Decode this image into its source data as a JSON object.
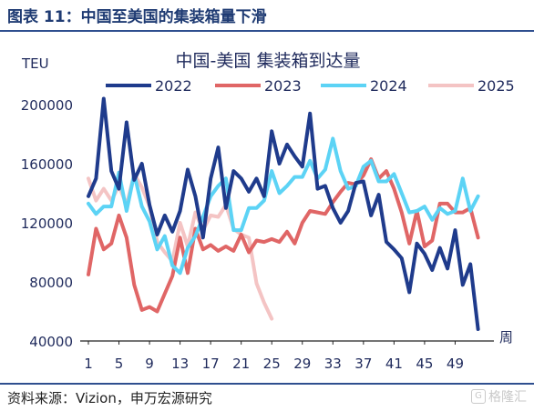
{
  "figure_title": "图表 11：中国至美国的集装箱量下滑",
  "source": "资料来源：Vizion，申万宏源研究",
  "watermark": "格隆汇",
  "chart_data": {
    "type": "line",
    "title": "中国-美国 集装箱到达量",
    "ylabel": "TEU",
    "xlabel": "周",
    "ylim": [
      40000,
      200000
    ],
    "yticks": [
      40000,
      80000,
      120000,
      160000,
      200000
    ],
    "ytick_labels": [
      "40000",
      "80000",
      "120000",
      "160000",
      "200000"
    ],
    "xlim": [
      1,
      53
    ],
    "xticks": [
      1,
      5,
      9,
      13,
      17,
      21,
      25,
      29,
      33,
      37,
      41,
      45,
      49
    ],
    "xtick_labels": [
      "1",
      "5",
      "9",
      "13",
      "17",
      "21",
      "25",
      "29",
      "33",
      "37",
      "41",
      "45",
      "49"
    ],
    "grid": false,
    "legend_position": "top",
    "colors": {
      "2022": "#1f3b8c",
      "2023": "#e06666",
      "2024": "#5cd3f5",
      "2025": "#f4c4c4"
    },
    "series": [
      {
        "name": "2022",
        "x": [
          1,
          2,
          3,
          4,
          5,
          6,
          7,
          8,
          9,
          10,
          11,
          12,
          13,
          14,
          15,
          16,
          17,
          18,
          19,
          20,
          21,
          22,
          23,
          24,
          25,
          26,
          27,
          28,
          29,
          30,
          31,
          32,
          33,
          34,
          35,
          36,
          37,
          38,
          39,
          40,
          41,
          42,
          43,
          44,
          45,
          46,
          47,
          48,
          49,
          50,
          51,
          52
        ],
        "values": [
          138000,
          150000,
          204000,
          155000,
          143000,
          188000,
          149000,
          160000,
          132000,
          112000,
          125000,
          114000,
          128000,
          156000,
          138000,
          110000,
          150000,
          171000,
          130000,
          155000,
          150000,
          141000,
          150000,
          138000,
          182000,
          160000,
          173000,
          165000,
          158000,
          194000,
          143000,
          145000,
          130000,
          120000,
          128000,
          147000,
          148000,
          125000,
          139000,
          107000,
          102000,
          96000,
          73000,
          106000,
          99000,
          88000,
          103000,
          89000,
          115000,
          78000,
          92000,
          48000
        ]
      },
      {
        "name": "2023",
        "x": [
          1,
          2,
          3,
          4,
          5,
          6,
          7,
          8,
          9,
          10,
          11,
          12,
          13,
          14,
          15,
          16,
          17,
          18,
          19,
          20,
          21,
          22,
          23,
          24,
          25,
          26,
          27,
          28,
          29,
          30,
          31,
          32,
          33,
          34,
          35,
          36,
          37,
          38,
          39,
          40,
          41,
          42,
          43,
          44,
          45,
          46,
          47,
          48,
          49,
          50,
          51,
          52
        ],
        "values": [
          85000,
          116000,
          102000,
          106000,
          125000,
          110000,
          78000,
          61000,
          63000,
          60000,
          72000,
          84000,
          110000,
          86000,
          116000,
          102000,
          105000,
          101000,
          104000,
          101000,
          112000,
          100000,
          108000,
          107000,
          109000,
          107000,
          114000,
          106000,
          120000,
          128000,
          127000,
          126000,
          134000,
          141000,
          147000,
          146000,
          152000,
          163000,
          150000,
          155000,
          143000,
          127000,
          106000,
          128000,
          104000,
          108000,
          133000,
          133000,
          127000,
          127000,
          130000,
          110000
        ]
      },
      {
        "name": "2024",
        "x": [
          1,
          2,
          3,
          4,
          5,
          6,
          7,
          8,
          9,
          10,
          11,
          12,
          13,
          14,
          15,
          16,
          17,
          18,
          19,
          20,
          21,
          22,
          23,
          24,
          25,
          26,
          27,
          28,
          29,
          30,
          31,
          32,
          33,
          34,
          35,
          36,
          37,
          38,
          39,
          40,
          41,
          42,
          43,
          44,
          45,
          46,
          47,
          48,
          49,
          50,
          51,
          52
        ],
        "values": [
          133000,
          126000,
          131000,
          131000,
          154000,
          128000,
          153000,
          131000,
          121000,
          102000,
          111000,
          91000,
          86000,
          103000,
          111000,
          124000,
          138000,
          145000,
          150000,
          115000,
          115000,
          130000,
          130000,
          135000,
          155000,
          140000,
          145000,
          151000,
          151000,
          162000,
          150000,
          156000,
          177000,
          155000,
          143000,
          145000,
          158000,
          162000,
          148000,
          148000,
          153000,
          140000,
          127000,
          128000,
          131000,
          122000,
          130000,
          126000,
          128000,
          150000,
          128000,
          138000
        ]
      },
      {
        "name": "2025",
        "x": [
          1,
          2,
          3,
          4,
          5,
          6,
          7,
          8,
          9,
          10,
          11,
          12,
          13,
          14,
          15,
          16,
          17,
          18,
          19,
          20,
          21,
          22,
          23,
          24,
          25
        ],
        "values": [
          150000,
          135000,
          143000,
          135000,
          145000,
          132000,
          153000,
          144000,
          131000,
          107000,
          100000,
          94000,
          120000,
          104000,
          127000,
          115000,
          125000,
          124000,
          132000,
          116000,
          112000,
          110000,
          79000,
          66000,
          55000
        ]
      }
    ]
  }
}
